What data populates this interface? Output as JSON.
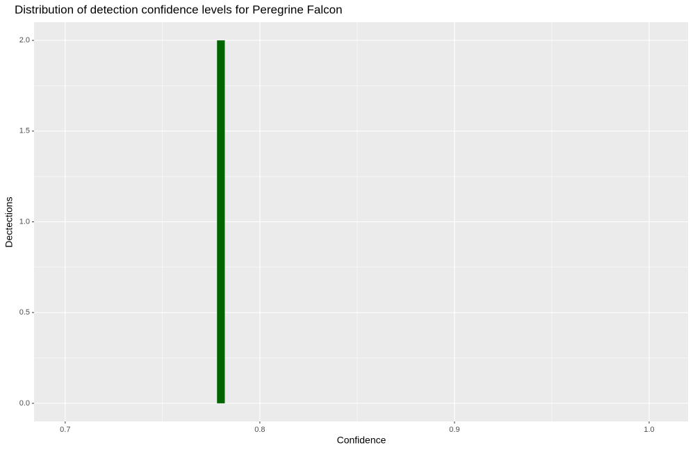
{
  "chart_data": {
    "type": "histogram",
    "title": "Distribution of detection confidence levels for Peregrine Falcon",
    "x_label": "Confidence",
    "y_label": "Dectections",
    "bins": [
      0.778,
      0.782
    ],
    "values": [
      2
    ],
    "color": "#006400",
    "xlim": [
      0.684,
      1.02
    ],
    "ylim": [
      -0.1,
      2.1
    ],
    "xticks": [
      0.7,
      0.8,
      0.9,
      {
        "value": 1,
        "label": "1.0"
      }
    ],
    "yticks": [
      {
        "value": 0,
        "label": "0.0"
      },
      0.5,
      {
        "value": 1,
        "label": "1.0"
      },
      1.5,
      {
        "value": 2,
        "label": "2.0"
      }
    ],
    "grid": true,
    "minor_grid": true
  }
}
